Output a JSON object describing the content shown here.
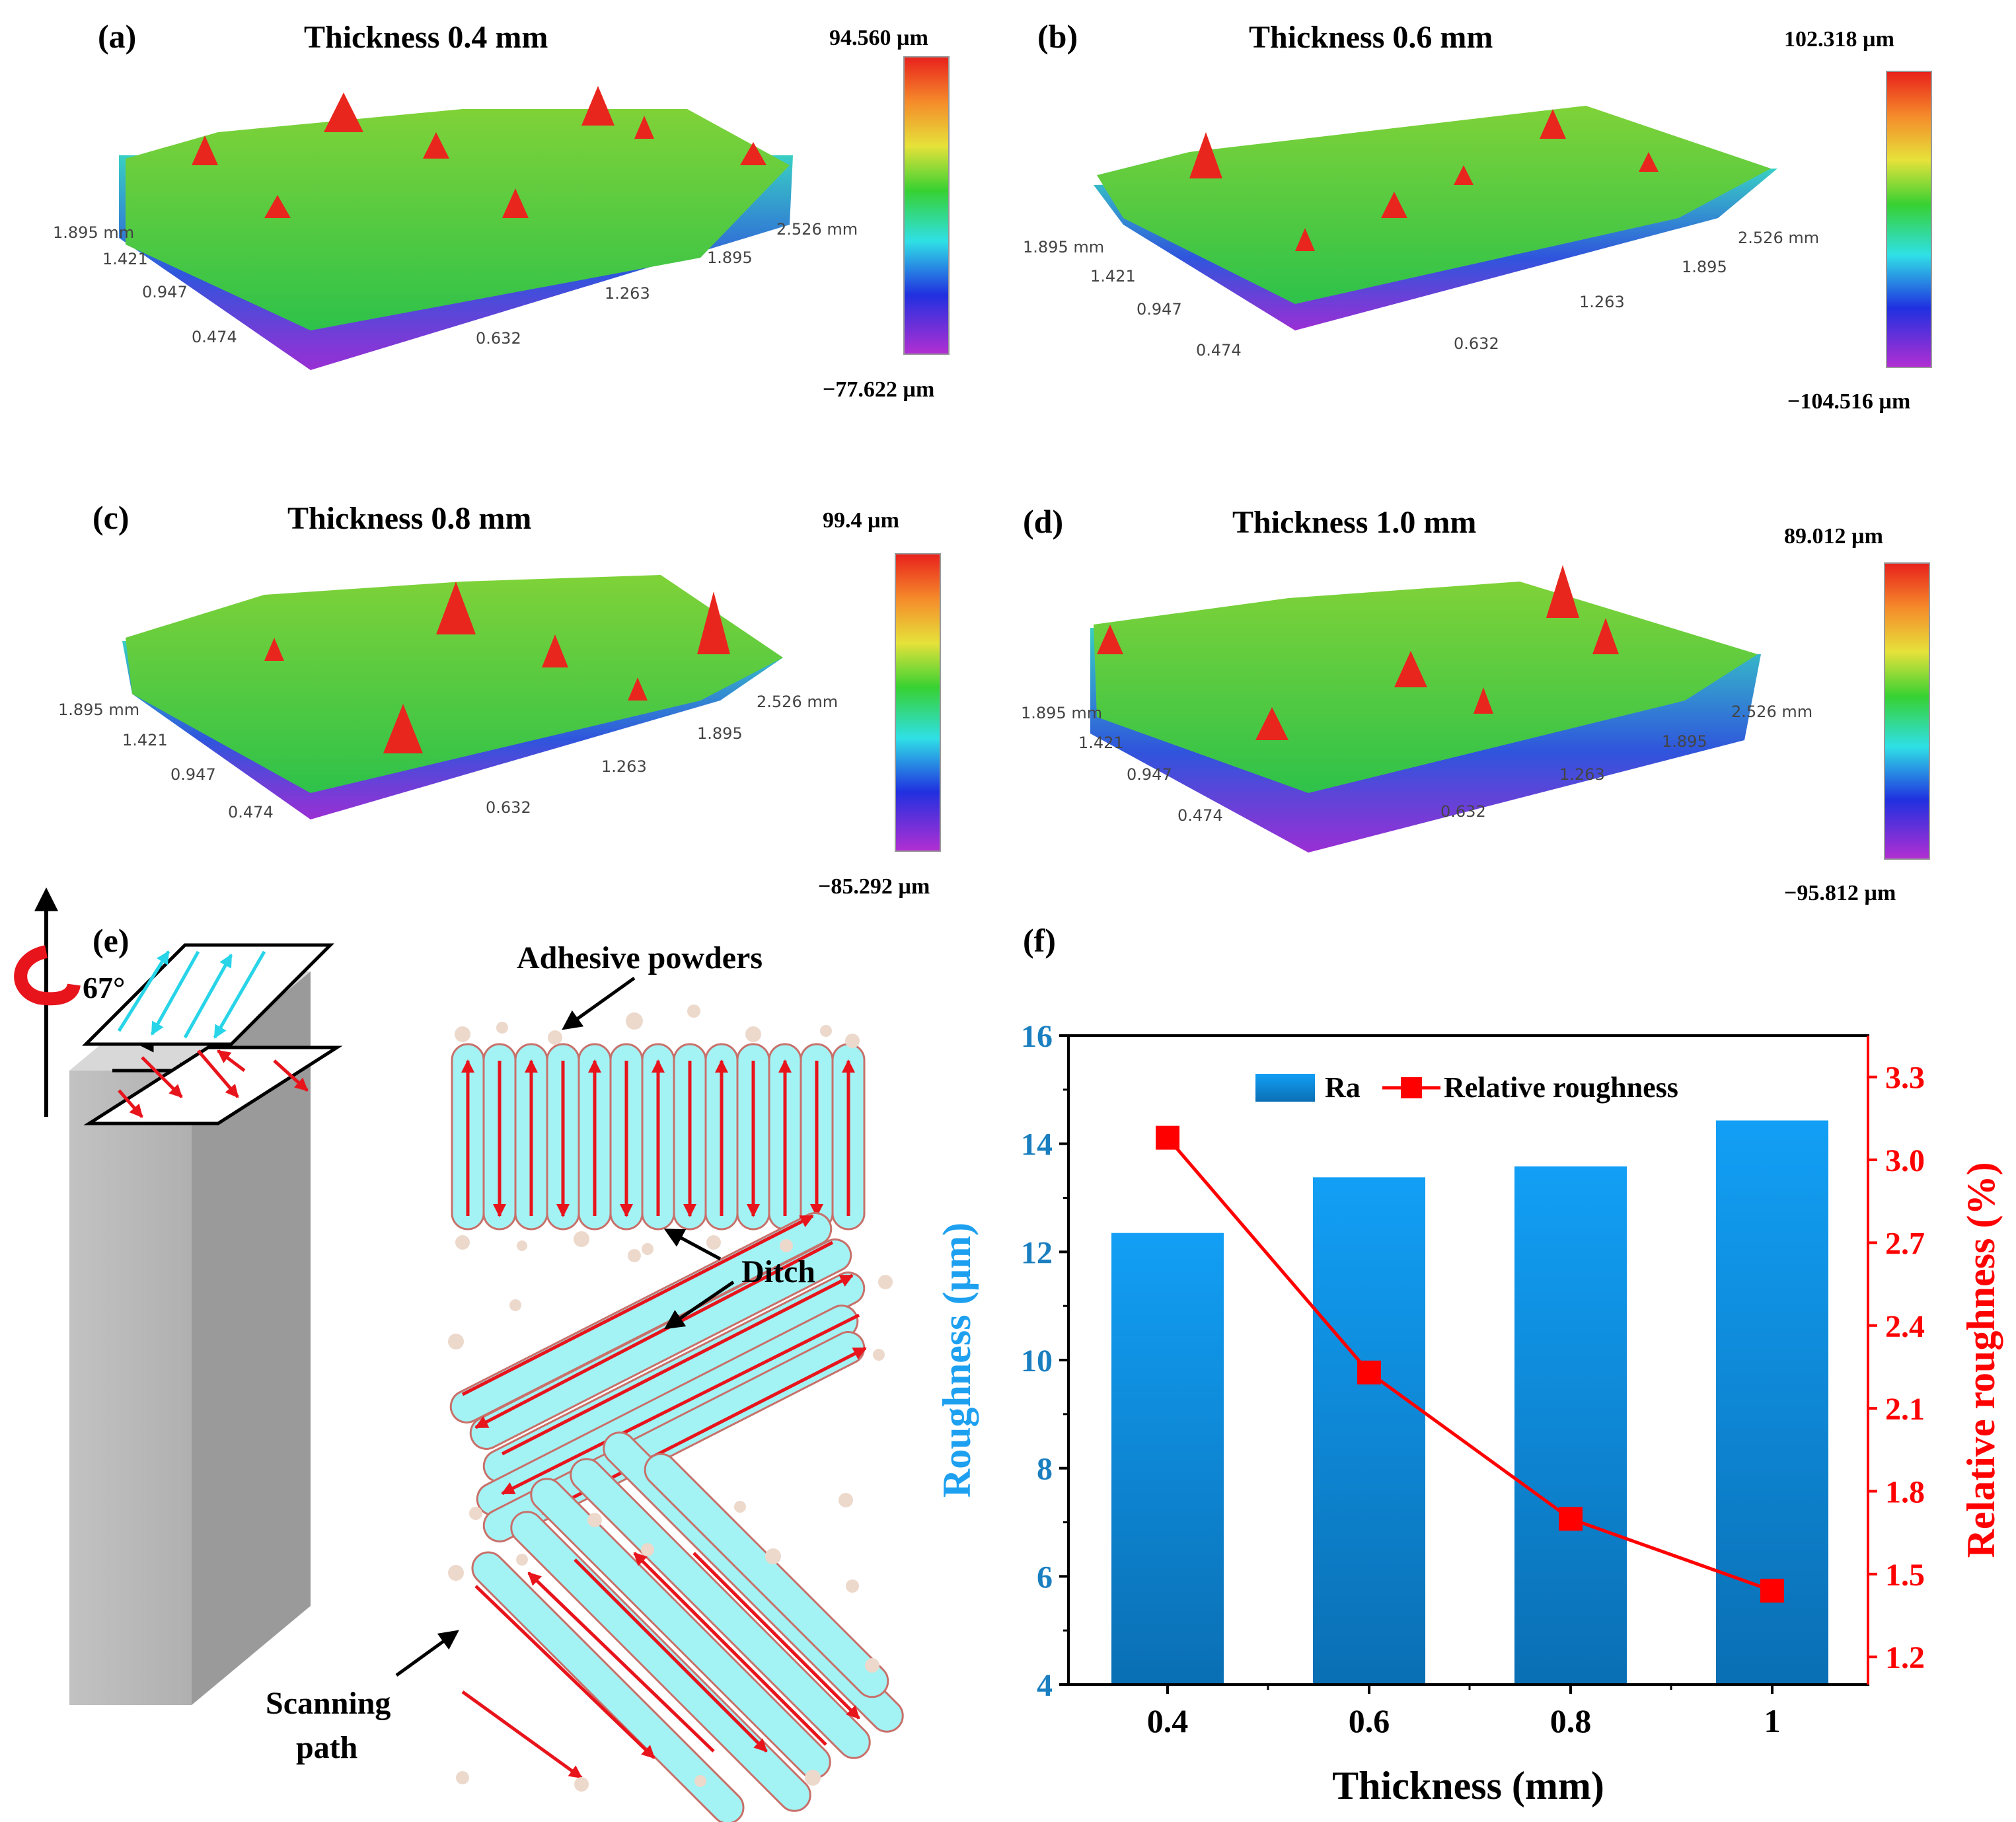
{
  "panels": [
    {
      "letter": "(a)",
      "title": "Thickness 0.4 mm",
      "cb_max": "94.560 µm",
      "cb_min": "−77.622 µm"
    },
    {
      "letter": "(b)",
      "title": "Thickness 0.6 mm",
      "cb_max": "102.318 µm",
      "cb_min": "−104.516 µm"
    },
    {
      "letter": "(c)",
      "title": "Thickness 0.8 mm",
      "cb_max": "99.4 µm",
      "cb_min": "−85.292 µm"
    },
    {
      "letter": "(d)",
      "title": "Thickness 1.0 mm",
      "cb_max": "89.012 µm",
      "cb_min": "−95.812 µm"
    }
  ],
  "surface_axes": {
    "left": [
      "1.895 mm",
      "1.421",
      "0.947",
      "0.474"
    ],
    "right": [
      "2.526 mm",
      "1.895",
      "1.263",
      "0.632"
    ]
  },
  "schematic": {
    "letter": "(e)",
    "angle": "67°",
    "adhesive": "Adhesive powders",
    "ditch": "Ditch",
    "scan1": "Scanning",
    "scan2": "path"
  },
  "colors": {
    "bar_top": "#129ff5",
    "bar_bottom": "#0a6fb4",
    "line": "#ff0000",
    "left_axis": "#1ea0f0",
    "right_axis": "#ff0000"
  },
  "chart_data": {
    "type": "bar",
    "letter": "(f)",
    "categories": [
      "0.4",
      "0.6",
      "0.8",
      "1"
    ],
    "series": [
      {
        "name": "Ra",
        "type": "bar",
        "axis": "left",
        "values": [
          12.35,
          13.38,
          13.58,
          14.43
        ]
      },
      {
        "name": "Relative roughness",
        "type": "line",
        "axis": "right",
        "values": [
          3.08,
          2.23,
          1.7,
          1.44
        ]
      }
    ],
    "xlabel": "Thickness (mm)",
    "ylabel": "Roughness (µm)",
    "y2label": "Relative roughness (%)",
    "ylim": [
      4,
      16
    ],
    "y2lim": [
      1.1,
      3.45
    ],
    "yticks": [
      "4",
      "6",
      "8",
      "10",
      "12",
      "14",
      "16"
    ],
    "y2ticks": [
      "1.2",
      "1.5",
      "1.8",
      "2.1",
      "2.4",
      "2.7",
      "3.0",
      "3.3"
    ],
    "legend": "top-center"
  }
}
